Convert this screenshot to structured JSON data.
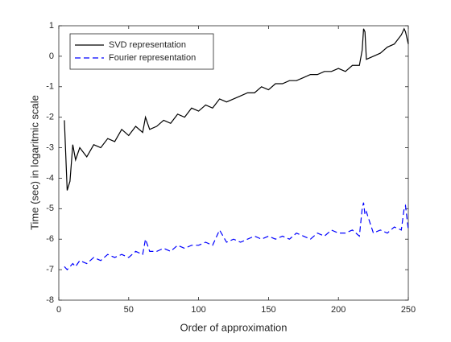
{
  "chart_data": {
    "type": "line",
    "xlabel": "Order of approximation",
    "ylabel": "Time (sec) in  logaritmic scale",
    "x": [
      4,
      6,
      8,
      10,
      12,
      15,
      20,
      25,
      30,
      35,
      40,
      45,
      50,
      55,
      60,
      62,
      65,
      70,
      75,
      80,
      85,
      90,
      95,
      100,
      105,
      110,
      115,
      120,
      125,
      130,
      135,
      140,
      145,
      150,
      155,
      160,
      165,
      170,
      175,
      180,
      185,
      190,
      195,
      200,
      205,
      210,
      215,
      217,
      218,
      219,
      220,
      225,
      230,
      235,
      240,
      245,
      247,
      248,
      250
    ],
    "series": [
      {
        "name": "SVD representation",
        "color": "#000000",
        "linestyle": "solid",
        "values": [
          -2.1,
          -4.4,
          -4.1,
          -2.9,
          -3.4,
          -3.0,
          -3.3,
          -2.9,
          -3.0,
          -2.7,
          -2.8,
          -2.4,
          -2.6,
          -2.3,
          -2.5,
          -2.0,
          -2.4,
          -2.3,
          -2.1,
          -2.2,
          -1.9,
          -2.0,
          -1.7,
          -1.8,
          -1.6,
          -1.7,
          -1.4,
          -1.5,
          -1.4,
          -1.3,
          -1.2,
          -1.2,
          -1.0,
          -1.1,
          -0.9,
          -0.9,
          -0.8,
          -0.8,
          -0.7,
          -0.6,
          -0.6,
          -0.5,
          -0.5,
          -0.4,
          -0.5,
          -0.3,
          -0.3,
          0.2,
          0.9,
          0.8,
          -0.1,
          0.0,
          0.1,
          0.3,
          0.4,
          0.7,
          0.9,
          0.8,
          0.4
        ]
      },
      {
        "name": "Fourier representation",
        "color": "#0000ff",
        "linestyle": "dashed",
        "values": [
          -6.9,
          -7.0,
          -6.9,
          -6.8,
          -6.9,
          -6.7,
          -6.8,
          -6.6,
          -6.7,
          -6.5,
          -6.6,
          -6.5,
          -6.6,
          -6.4,
          -6.5,
          -6.0,
          -6.4,
          -6.4,
          -6.3,
          -6.4,
          -6.2,
          -6.3,
          -6.2,
          -6.2,
          -6.1,
          -6.2,
          -5.7,
          -6.1,
          -6.0,
          -6.1,
          -6.0,
          -5.9,
          -6.0,
          -5.9,
          -6.0,
          -5.9,
          -6.0,
          -5.8,
          -5.9,
          -6.0,
          -5.8,
          -5.9,
          -5.7,
          -5.8,
          -5.8,
          -5.7,
          -5.9,
          -5.0,
          -4.8,
          -5.2,
          -5.1,
          -5.8,
          -5.7,
          -5.8,
          -5.6,
          -5.7,
          -5.0,
          -4.9,
          -5.7
        ]
      }
    ],
    "xlim": [
      0,
      250
    ],
    "xticks": [
      0,
      50,
      100,
      150,
      200,
      250
    ],
    "ylim": [
      -8,
      1
    ],
    "yticks": [
      -8,
      -7,
      -6,
      -5,
      -4,
      -3,
      -2,
      -1,
      0,
      1
    ],
    "legend": "upper left",
    "grid": false
  }
}
